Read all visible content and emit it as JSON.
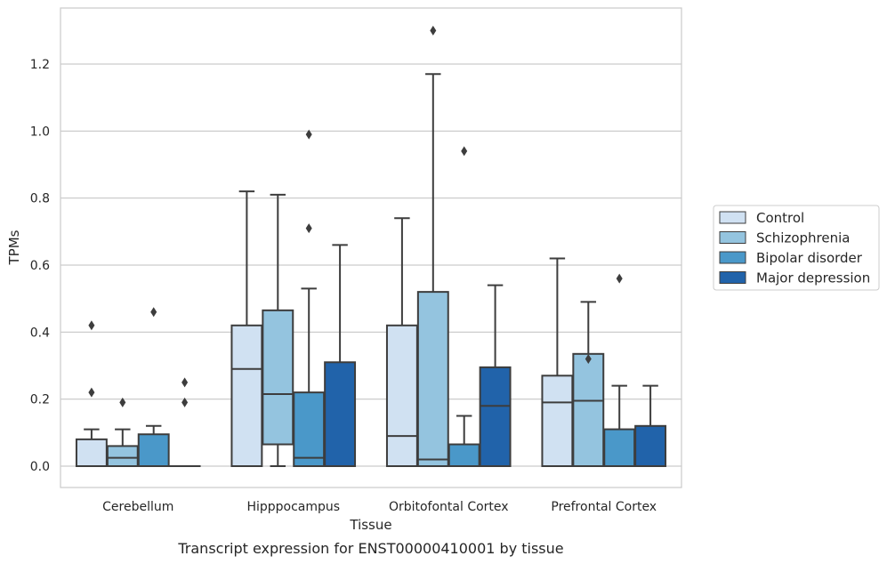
{
  "chart_data": {
    "type": "box",
    "caption": "Transcript expression for ENST00000410001 by tissue",
    "xlabel": "Tissue",
    "ylabel": "TPMs",
    "ylim": [
      -0.065,
      1.375
    ],
    "yticks": [
      "0.0",
      "0.2",
      "0.4",
      "0.6",
      "0.8",
      "1.0",
      "1.2"
    ],
    "ytick_values": [
      0.0,
      0.2,
      0.4,
      0.6,
      0.8,
      1.0,
      1.2
    ],
    "grid": "horizontal",
    "legend_position": "right",
    "categories": [
      "Cerebellum",
      "Hipppocampus",
      "Orbitofontal Cortex",
      "Prefrontal Cortex"
    ],
    "series": [
      {
        "name": "Control",
        "color": "#d0e1f2",
        "boxes": [
          {
            "whislo": 0.0,
            "q1": 0.0,
            "med": 0.0,
            "q3": 0.08,
            "whishi": 0.11,
            "fliers": [
              0.22,
              0.42
            ]
          },
          {
            "whislo": 0.0,
            "q1": 0.0,
            "med": 0.29,
            "q3": 0.42,
            "whishi": 0.82,
            "fliers": []
          },
          {
            "whislo": 0.0,
            "q1": 0.0,
            "med": 0.09,
            "q3": 0.42,
            "whishi": 0.74,
            "fliers": []
          },
          {
            "whislo": 0.0,
            "q1": 0.0,
            "med": 0.19,
            "q3": 0.27,
            "whishi": 0.62,
            "fliers": []
          }
        ]
      },
      {
        "name": "Schizophrenia",
        "color": "#94c4df",
        "boxes": [
          {
            "whislo": 0.0,
            "q1": 0.0,
            "med": 0.025,
            "q3": 0.06,
            "whishi": 0.11,
            "fliers": [
              0.19
            ]
          },
          {
            "whislo": 0.0,
            "q1": 0.065,
            "med": 0.215,
            "q3": 0.465,
            "whishi": 0.81,
            "fliers": []
          },
          {
            "whislo": 0.0,
            "q1": 0.0,
            "med": 0.02,
            "q3": 0.52,
            "whishi": 1.17,
            "fliers": [
              1.3
            ]
          },
          {
            "whislo": 0.0,
            "q1": 0.0,
            "med": 0.195,
            "q3": 0.335,
            "whishi": 0.49,
            "fliers": [
              0.32
            ]
          }
        ]
      },
      {
        "name": "Bipolar disorder",
        "color": "#4a98c9",
        "boxes": [
          {
            "whislo": 0.0,
            "q1": 0.0,
            "med": 0.0,
            "q3": 0.095,
            "whishi": 0.12,
            "fliers": [
              0.46
            ]
          },
          {
            "whislo": 0.0,
            "q1": 0.0,
            "med": 0.025,
            "q3": 0.22,
            "whishi": 0.53,
            "fliers": [
              0.71,
              0.99
            ]
          },
          {
            "whislo": 0.0,
            "q1": 0.0,
            "med": 0.0,
            "q3": 0.065,
            "whishi": 0.15,
            "fliers": [
              0.94
            ]
          },
          {
            "whislo": 0.0,
            "q1": 0.0,
            "med": 0.0,
            "q3": 0.11,
            "whishi": 0.24,
            "fliers": [
              0.56
            ]
          }
        ]
      },
      {
        "name": "Major depression",
        "color": "#2163aa",
        "boxes": [
          {
            "whislo": 0.0,
            "q1": 0.0,
            "med": 0.0,
            "q3": 0.0,
            "whishi": 0.0,
            "fliers": [
              0.19,
              0.25
            ]
          },
          {
            "whislo": 0.0,
            "q1": 0.0,
            "med": 0.0,
            "q3": 0.31,
            "whishi": 0.66,
            "fliers": []
          },
          {
            "whislo": 0.0,
            "q1": 0.0,
            "med": 0.18,
            "q3": 0.295,
            "whishi": 0.54,
            "fliers": []
          },
          {
            "whislo": 0.0,
            "q1": 0.0,
            "med": 0.0,
            "q3": 0.12,
            "whishi": 0.24,
            "fliers": []
          }
        ]
      }
    ]
  }
}
